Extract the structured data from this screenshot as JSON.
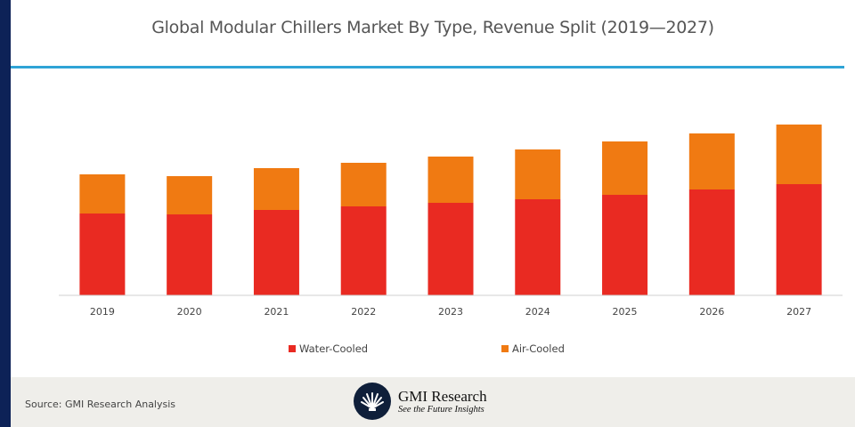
{
  "title": "Global Modular Chillers Market By Type, Revenue Split (2019—2027)",
  "chart_data": {
    "type": "bar",
    "stacked": true,
    "title": "Global Modular Chillers Market By Type, Revenue Split (2019—2027)",
    "xlabel": "",
    "ylabel": "",
    "categories": [
      "2019",
      "2020",
      "2021",
      "2022",
      "2023",
      "2024",
      "2025",
      "2026",
      "2027"
    ],
    "series": [
      {
        "name": "Water-Cooled",
        "color": "#e92a22",
        "values": [
          92,
          91,
          96,
          100,
          104,
          108,
          113,
          119,
          125
        ]
      },
      {
        "name": "Air-Cooled",
        "color": "#f07a12",
        "values": [
          44,
          43,
          47,
          49,
          52,
          56,
          60,
          63,
          67
        ]
      }
    ],
    "ylim": [
      0,
      200
    ],
    "y_axis_shown": false,
    "grid": false,
    "legend_position": "bottom",
    "units_note": "relative units (no axis scale shown)"
  },
  "legend": [
    {
      "label": "Water-Cooled",
      "color": "#e92a22"
    },
    {
      "label": "Air-Cooled",
      "color": "#f07a12"
    }
  ],
  "footer": {
    "source": "Source: GMI Research Analysis",
    "brand": "GMI Research",
    "tagline": "See the Future Insights"
  },
  "colors": {
    "accent_bar": "#0d2257",
    "title_rule": "#2fa4d6",
    "footer_bg": "#efeeea"
  }
}
